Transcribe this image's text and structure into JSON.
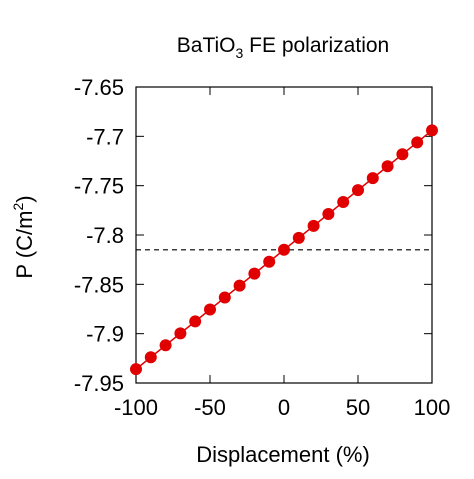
{
  "chart_data": {
    "type": "line",
    "title_base": "BaTiO",
    "title_sub": "3",
    "title_rest": " FE polarization",
    "xlabel": "Displacement (%)",
    "ylabel_base": "P (C/m",
    "ylabel_sup": "2",
    "ylabel_end": ")",
    "xlim": [
      -100,
      100
    ],
    "ylim": [
      -7.95,
      -7.65
    ],
    "xticks": [
      -100,
      -50,
      0,
      50,
      100
    ],
    "xtick_labels": [
      "-100",
      "-50",
      "0",
      "50",
      "100"
    ],
    "yticks": [
      -7.95,
      -7.9,
      -7.85,
      -7.8,
      -7.75,
      -7.7,
      -7.65
    ],
    "ytick_labels": [
      "-7.95",
      "-7.9",
      "-7.85",
      "-7.8",
      "-7.75",
      "-7.7",
      "-7.65"
    ],
    "grid": false,
    "series": [
      {
        "color": "#e00000",
        "x": [
          -100,
          -90,
          -80,
          -70,
          -60,
          -50,
          -40,
          -30,
          -20,
          -10,
          0,
          10,
          20,
          30,
          40,
          50,
          60,
          70,
          80,
          90,
          100
        ],
        "y": [
          -7.936,
          -7.9239,
          -7.9118,
          -7.8997,
          -7.8876,
          -7.8755,
          -7.8634,
          -7.8513,
          -7.8392,
          -7.8271,
          -7.815,
          -7.8029,
          -7.7908,
          -7.7787,
          -7.7666,
          -7.7545,
          -7.7424,
          -7.7303,
          -7.7182,
          -7.7061,
          -7.694
        ]
      }
    ],
    "reference_line": {
      "y": -7.815,
      "style": "dashed",
      "color": "#000000"
    }
  }
}
